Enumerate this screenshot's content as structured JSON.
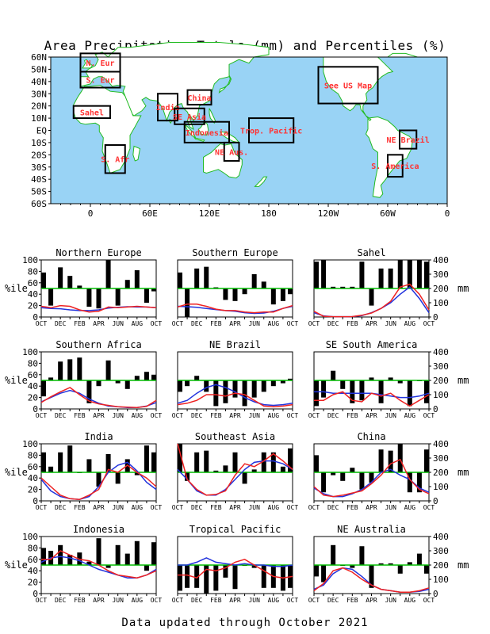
{
  "title": "Area Precipitation Totals (mm) and Percentiles (%)",
  "footer": "Data updated through October 2021",
  "map": {
    "lat_labels": [
      "60N",
      "50N",
      "40N",
      "30N",
      "20N",
      "10N",
      "EQ",
      "10S",
      "20S",
      "30S",
      "40S",
      "50S",
      "60S"
    ],
    "lon_labels": [
      "0",
      "60E",
      "120E",
      "180",
      "120W",
      "60W",
      "0"
    ],
    "colors": {
      "ocean": "#99d3f5",
      "land": "#ffffff",
      "coast": "#22bb22",
      "box": "#000000",
      "label": "#ff3333"
    },
    "regions": [
      {
        "label": "N. Eur",
        "lon": [
          -10,
          30
        ],
        "lat": [
          48,
          63
        ]
      },
      {
        "label": "S. Eur",
        "lon": [
          -10,
          30
        ],
        "lat": [
          35,
          48
        ]
      },
      {
        "label": "Sahel",
        "lon": [
          -17,
          20
        ],
        "lat": [
          10,
          20
        ]
      },
      {
        "label": "S. Afr",
        "lon": [
          15,
          35
        ],
        "lat": [
          -35,
          -12
        ]
      },
      {
        "label": "India",
        "lon": [
          68,
          88
        ],
        "lat": [
          8,
          30
        ]
      },
      {
        "label": "China",
        "lon": [
          98,
          122
        ],
        "lat": [
          21,
          33
        ]
      },
      {
        "label": "SE Asia",
        "lon": [
          85,
          115
        ],
        "lat": [
          5,
          18
        ]
      },
      {
        "label": "Indonesia",
        "lon": [
          95,
          140
        ],
        "lat": [
          -10,
          7
        ]
      },
      {
        "label": "Trop. Pacific",
        "lon": [
          160,
          205
        ],
        "lat": [
          -10,
          10
        ]
      },
      {
        "label": "NE Aus.",
        "lon": [
          135,
          150
        ],
        "lat": [
          -25,
          -10
        ]
      },
      {
        "label": "See US Map",
        "lon": [
          230,
          290
        ],
        "lat": [
          22,
          52
        ]
      },
      {
        "label": "NE Brazil",
        "lon": [
          312,
          329
        ],
        "lat": [
          -15,
          0
        ]
      },
      {
        "label": "S. America",
        "lon": [
          300,
          315
        ],
        "lat": [
          -38,
          -20
        ]
      }
    ]
  },
  "panel_axes": {
    "x_ticks": [
      "OCT",
      "DEC",
      "FEB",
      "APR",
      "JUN",
      "AUG",
      "OCT"
    ],
    "left_ticks": [
      0,
      20,
      40,
      60,
      80,
      100
    ],
    "left_label": "%ile",
    "right_ticks": [
      0,
      100,
      200,
      300,
      400
    ],
    "right_label": "mm",
    "colors": {
      "bars": "#000000",
      "normal": "#2233dd",
      "observed": "#ee2222",
      "median": "#00bb00"
    }
  },
  "chart_data": [
    {
      "type": "bar",
      "title": "Northern Europe",
      "percentile": [
        78,
        20,
        87,
        72,
        55,
        18,
        15,
        100,
        20,
        65,
        82,
        25,
        45
      ],
      "normal_mm": [
        65,
        60,
        58,
        50,
        45,
        45,
        50,
        62,
        68,
        72,
        70,
        70,
        65
      ],
      "observed_mm": [
        75,
        65,
        80,
        75,
        50,
        35,
        40,
        70,
        65,
        70,
        75,
        70,
        65
      ]
    },
    {
      "type": "bar",
      "title": "Southern Europe",
      "percentile": [
        78,
        0,
        85,
        88,
        52,
        30,
        28,
        40,
        75,
        62,
        22,
        28,
        40
      ],
      "normal_mm": [
        75,
        72,
        68,
        60,
        52,
        45,
        40,
        30,
        25,
        28,
        40,
        60,
        75
      ],
      "observed_mm": [
        70,
        90,
        90,
        75,
        55,
        45,
        45,
        35,
        30,
        35,
        35,
        60,
        80
      ]
    },
    {
      "type": "bar",
      "title": "Sahel",
      "percentile": [
        97,
        100,
        53,
        53,
        53,
        97,
        20,
        85,
        85,
        100,
        100,
        100,
        97
      ],
      "normal_mm": [
        30,
        8,
        2,
        2,
        3,
        10,
        30,
        60,
        100,
        160,
        210,
        130,
        30
      ],
      "observed_mm": [
        40,
        5,
        2,
        2,
        3,
        12,
        28,
        60,
        110,
        210,
        230,
        160,
        50
      ]
    },
    {
      "type": "bar",
      "title": "Southern Africa",
      "percentile": [
        22,
        55,
        83,
        87,
        90,
        10,
        40,
        85,
        45,
        35,
        58,
        65,
        60
      ],
      "normal_mm": [
        50,
        80,
        110,
        130,
        110,
        70,
        40,
        20,
        15,
        10,
        10,
        20,
        45
      ],
      "observed_mm": [
        45,
        85,
        120,
        150,
        100,
        55,
        35,
        25,
        15,
        12,
        10,
        18,
        60
      ]
    },
    {
      "type": "bar",
      "title": "NE Brazil",
      "percentile": [
        30,
        40,
        58,
        30,
        5,
        10,
        20,
        5,
        20,
        30,
        40,
        45,
        53
      ],
      "normal_mm": [
        40,
        60,
        110,
        150,
        170,
        150,
        120,
        80,
        50,
        30,
        25,
        30,
        40
      ],
      "observed_mm": [
        30,
        40,
        60,
        100,
        100,
        90,
        110,
        100,
        60,
        20,
        15,
        20,
        30
      ]
    },
    {
      "type": "bar",
      "title": "SE South America",
      "percentile": [
        5,
        20,
        67,
        35,
        10,
        15,
        55,
        10,
        55,
        45,
        5,
        50,
        10
      ],
      "normal_mm": [
        120,
        120,
        110,
        110,
        110,
        110,
        110,
        100,
        90,
        80,
        80,
        90,
        110
      ],
      "observed_mm": [
        60,
        60,
        100,
        120,
        60,
        50,
        110,
        90,
        110,
        60,
        20,
        60,
        100
      ]
    },
    {
      "type": "bar",
      "title": "India",
      "percentile": [
        85,
        60,
        85,
        97,
        50,
        73,
        25,
        82,
        30,
        73,
        45,
        97,
        85
      ],
      "normal_mm": [
        150,
        70,
        30,
        15,
        10,
        30,
        100,
        200,
        250,
        270,
        210,
        130,
        80
      ],
      "observed_mm": [
        160,
        100,
        40,
        15,
        10,
        40,
        80,
        220,
        200,
        250,
        200,
        160,
        100
      ]
    },
    {
      "type": "bar",
      "title": "Southeast Asia",
      "percentile": [
        100,
        35,
        85,
        88,
        53,
        62,
        85,
        30,
        55,
        85,
        85,
        60,
        92
      ],
      "normal_mm": [
        220,
        150,
        70,
        40,
        40,
        80,
        150,
        220,
        270,
        280,
        280,
        260,
        220
      ],
      "observed_mm": [
        400,
        150,
        80,
        40,
        45,
        70,
        180,
        260,
        240,
        280,
        330,
        280,
        220
      ]
    },
    {
      "type": "bar",
      "title": "China",
      "percentile": [
        80,
        15,
        45,
        35,
        58,
        20,
        32,
        90,
        88,
        100,
        15,
        15,
        90
      ],
      "normal_mm": [
        90,
        50,
        30,
        30,
        50,
        80,
        130,
        200,
        220,
        180,
        150,
        90,
        60
      ],
      "observed_mm": [
        100,
        40,
        30,
        40,
        55,
        70,
        120,
        180,
        260,
        290,
        150,
        80,
        50
      ]
    },
    {
      "type": "bar",
      "title": "Indonesia",
      "percentile": [
        80,
        75,
        85,
        68,
        72,
        56,
        97,
        45,
        85,
        70,
        92,
        40,
        90
      ],
      "normal_mm": [
        220,
        250,
        260,
        250,
        230,
        200,
        170,
        150,
        130,
        110,
        110,
        130,
        170
      ],
      "observed_mm": [
        240,
        240,
        300,
        270,
        240,
        230,
        200,
        160,
        130,
        120,
        110,
        130,
        160
      ]
    },
    {
      "type": "bar",
      "title": "Tropical Pacific",
      "percentile": [
        5,
        10,
        10,
        0,
        5,
        28,
        8,
        50,
        45,
        10,
        10,
        5,
        10
      ],
      "normal_mm": [
        200,
        200,
        220,
        250,
        220,
        210,
        200,
        210,
        200,
        200,
        190,
        190,
        200
      ],
      "observed_mm": [
        130,
        130,
        110,
        170,
        160,
        180,
        220,
        240,
        200,
        160,
        120,
        110,
        120
      ]
    },
    {
      "type": "bar",
      "title": "NE Australia",
      "percentile": [
        30,
        20,
        85,
        50,
        45,
        83,
        10,
        53,
        53,
        35,
        55,
        70,
        35
      ],
      "normal_mm": [
        30,
        60,
        140,
        180,
        170,
        120,
        60,
        30,
        20,
        10,
        10,
        15,
        30
      ],
      "observed_mm": [
        20,
        70,
        160,
        180,
        150,
        100,
        60,
        30,
        20,
        10,
        10,
        20,
        40
      ]
    }
  ]
}
